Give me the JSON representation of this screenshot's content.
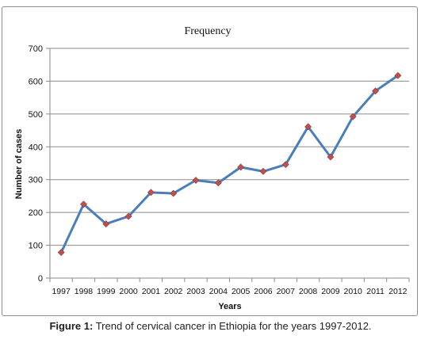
{
  "chart_data": {
    "type": "line",
    "title": "Frequency",
    "xlabel": "Years",
    "ylabel": "Number of cases",
    "ylim": [
      0,
      700
    ],
    "yticks": [
      "0",
      "100",
      "200",
      "300",
      "400",
      "500",
      "600",
      "700"
    ],
    "categories": [
      "1997",
      "1998",
      "1999",
      "2000",
      "2001",
      "2002",
      "2003",
      "2004",
      "2005",
      "2006",
      "2007",
      "2008",
      "2009",
      "2010",
      "2011",
      "2012"
    ],
    "series": [
      {
        "values": [
          78,
          225,
          165,
          188,
          261,
          258,
          298,
          290,
          338,
          325,
          346,
          461,
          369,
          492,
          570,
          617
        ],
        "color": "#4a7ebb",
        "marker_color": "#c0504d"
      }
    ],
    "grid": true,
    "legend": "none"
  },
  "caption": {
    "label": "Figure 1:",
    "text": " Trend of cervical cancer in Ethiopia for the years 1997-2012."
  }
}
